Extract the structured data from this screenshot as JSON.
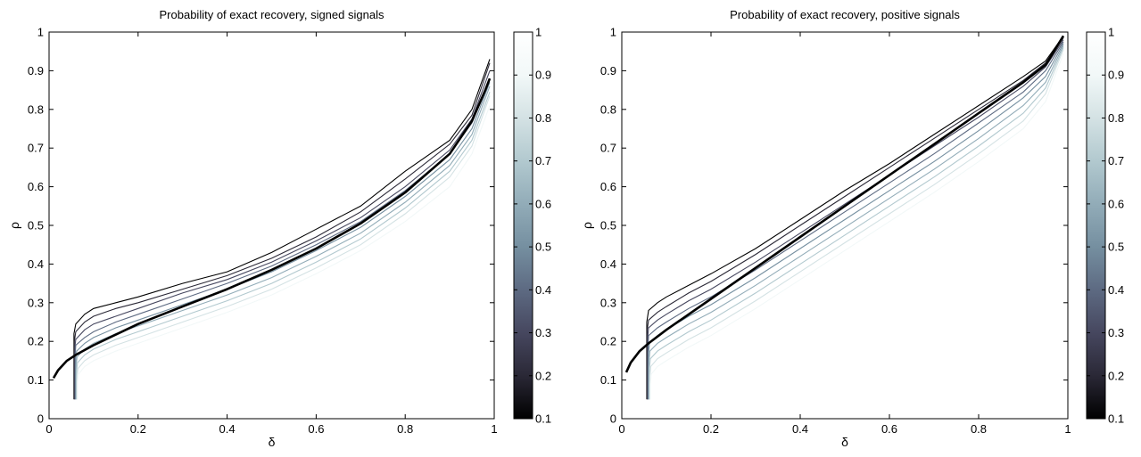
{
  "chart_data": [
    {
      "type": "contour",
      "title": "Probability of exact recovery, signed signals",
      "xlabel": "δ",
      "ylabel": "ρ",
      "xlim": [
        0,
        1
      ],
      "ylim": [
        0,
        1
      ],
      "x_ticks": [
        "0",
        "0.2",
        "0.4",
        "0.6",
        "0.8",
        "1"
      ],
      "y_ticks": [
        "0",
        "0.1",
        "0.2",
        "0.3",
        "0.4",
        "0.5",
        "0.6",
        "0.7",
        "0.8",
        "0.9",
        "1"
      ],
      "grid": false,
      "colorbar": {
        "ticks": [
          "0.1",
          "0.2",
          "0.3",
          "0.4",
          "0.5",
          "0.6",
          "0.7",
          "0.8",
          "0.9",
          "1"
        ],
        "colors": [
          "#000000",
          "#2a2836",
          "#46475f",
          "#5d6a82",
          "#758fa0",
          "#92acb8",
          "#b2c9cf",
          "#d4e2e4",
          "#f2f8f8",
          "#ffffff"
        ]
      },
      "threshold_curve": {
        "x": [
          0.01,
          0.02,
          0.04,
          0.06,
          0.1,
          0.2,
          0.3,
          0.4,
          0.5,
          0.6,
          0.7,
          0.8,
          0.9,
          0.95,
          0.98,
          0.99
        ],
        "y": [
          0.105,
          0.125,
          0.15,
          0.165,
          0.19,
          0.245,
          0.29,
          0.335,
          0.385,
          0.44,
          0.505,
          0.585,
          0.685,
          0.77,
          0.85,
          0.88
        ]
      },
      "contour_levels": [
        {
          "level": 0.1,
          "x": [
            0.056,
            0.06,
            0.08,
            0.1,
            0.15,
            0.2,
            0.3,
            0.4,
            0.5,
            0.6,
            0.7,
            0.8,
            0.9,
            0.95,
            0.99
          ],
          "y": [
            0.22,
            0.245,
            0.27,
            0.285,
            0.3,
            0.315,
            0.35,
            0.38,
            0.43,
            0.49,
            0.55,
            0.64,
            0.72,
            0.8,
            0.93
          ]
        },
        {
          "level": 0.2,
          "x": [
            0.057,
            0.06,
            0.08,
            0.1,
            0.15,
            0.2,
            0.3,
            0.4,
            0.5,
            0.6,
            0.7,
            0.8,
            0.9,
            0.95,
            0.99
          ],
          "y": [
            0.2,
            0.225,
            0.25,
            0.265,
            0.285,
            0.3,
            0.335,
            0.37,
            0.415,
            0.47,
            0.535,
            0.62,
            0.71,
            0.785,
            0.92
          ]
        },
        {
          "level": 0.3,
          "x": [
            0.058,
            0.06,
            0.08,
            0.1,
            0.15,
            0.2,
            0.3,
            0.4,
            0.5,
            0.6,
            0.7,
            0.8,
            0.9,
            0.95,
            0.99
          ],
          "y": [
            0.185,
            0.205,
            0.23,
            0.245,
            0.265,
            0.285,
            0.325,
            0.36,
            0.405,
            0.46,
            0.52,
            0.6,
            0.695,
            0.775,
            0.9
          ]
        },
        {
          "level": 0.4,
          "x": [
            0.059,
            0.06,
            0.08,
            0.1,
            0.15,
            0.2,
            0.3,
            0.4,
            0.5,
            0.6,
            0.7,
            0.8,
            0.9,
            0.95,
            0.99
          ],
          "y": [
            0.17,
            0.19,
            0.21,
            0.225,
            0.25,
            0.27,
            0.31,
            0.35,
            0.395,
            0.45,
            0.51,
            0.59,
            0.685,
            0.765,
            0.88
          ]
        },
        {
          "level": 0.5,
          "x": [
            0.06,
            0.062,
            0.08,
            0.1,
            0.15,
            0.2,
            0.3,
            0.4,
            0.5,
            0.6,
            0.7,
            0.8,
            0.9,
            0.95,
            0.99
          ],
          "y": [
            0.155,
            0.175,
            0.195,
            0.21,
            0.235,
            0.255,
            0.295,
            0.335,
            0.38,
            0.435,
            0.495,
            0.575,
            0.67,
            0.75,
            0.87
          ]
        },
        {
          "level": 0.6,
          "x": [
            0.061,
            0.063,
            0.08,
            0.1,
            0.15,
            0.2,
            0.3,
            0.4,
            0.5,
            0.6,
            0.7,
            0.8,
            0.9,
            0.95,
            0.99
          ],
          "y": [
            0.14,
            0.16,
            0.18,
            0.195,
            0.22,
            0.24,
            0.28,
            0.32,
            0.365,
            0.42,
            0.48,
            0.56,
            0.655,
            0.735,
            0.86
          ]
        },
        {
          "level": 0.7,
          "x": [
            0.062,
            0.064,
            0.08,
            0.1,
            0.15,
            0.2,
            0.3,
            0.4,
            0.5,
            0.6,
            0.7,
            0.8,
            0.9,
            0.95,
            0.99
          ],
          "y": [
            0.125,
            0.145,
            0.165,
            0.18,
            0.205,
            0.225,
            0.265,
            0.305,
            0.35,
            0.405,
            0.465,
            0.545,
            0.64,
            0.72,
            0.845
          ]
        },
        {
          "level": 0.8,
          "x": [
            0.063,
            0.065,
            0.08,
            0.1,
            0.15,
            0.2,
            0.3,
            0.4,
            0.5,
            0.6,
            0.7,
            0.8,
            0.9,
            0.95,
            0.99
          ],
          "y": [
            0.11,
            0.13,
            0.15,
            0.165,
            0.19,
            0.21,
            0.25,
            0.29,
            0.335,
            0.39,
            0.45,
            0.53,
            0.625,
            0.705,
            0.835
          ]
        },
        {
          "level": 0.9,
          "x": [
            0.064,
            0.066,
            0.08,
            0.1,
            0.15,
            0.2,
            0.3,
            0.4,
            0.5,
            0.6,
            0.7,
            0.8,
            0.9,
            0.95,
            0.99
          ],
          "y": [
            0.095,
            0.115,
            0.135,
            0.15,
            0.175,
            0.195,
            0.235,
            0.275,
            0.32,
            0.375,
            0.435,
            0.51,
            0.6,
            0.685,
            0.81
          ]
        }
      ]
    },
    {
      "type": "contour",
      "title": "Probability of exact recovery, positive signals",
      "xlabel": "δ",
      "ylabel": "ρ",
      "xlim": [
        0,
        1
      ],
      "ylim": [
        0,
        1
      ],
      "x_ticks": [
        "0",
        "0.2",
        "0.4",
        "0.6",
        "0.8",
        "1"
      ],
      "y_ticks": [
        "0",
        "0.1",
        "0.2",
        "0.3",
        "0.4",
        "0.5",
        "0.6",
        "0.7",
        "0.8",
        "0.9",
        "1"
      ],
      "grid": false,
      "colorbar": {
        "ticks": [
          "0.1",
          "0.2",
          "0.3",
          "0.4",
          "0.5",
          "0.6",
          "0.7",
          "0.8",
          "0.9",
          "1"
        ],
        "colors": [
          "#000000",
          "#2a2836",
          "#46475f",
          "#5d6a82",
          "#758fa0",
          "#92acb8",
          "#b2c9cf",
          "#d4e2e4",
          "#f2f8f8",
          "#ffffff"
        ]
      },
      "threshold_curve": {
        "x": [
          0.01,
          0.02,
          0.04,
          0.06,
          0.1,
          0.2,
          0.3,
          0.4,
          0.5,
          0.6,
          0.7,
          0.8,
          0.9,
          0.95,
          0.99
        ],
        "y": [
          0.12,
          0.145,
          0.175,
          0.195,
          0.23,
          0.31,
          0.39,
          0.47,
          0.55,
          0.63,
          0.71,
          0.79,
          0.87,
          0.915,
          0.99
        ]
      },
      "contour_levels": [
        {
          "level": 0.1,
          "x": [
            0.056,
            0.06,
            0.08,
            0.1,
            0.15,
            0.2,
            0.3,
            0.4,
            0.5,
            0.6,
            0.7,
            0.8,
            0.9,
            0.95,
            0.99
          ],
          "y": [
            0.25,
            0.28,
            0.3,
            0.315,
            0.345,
            0.375,
            0.44,
            0.515,
            0.59,
            0.66,
            0.735,
            0.81,
            0.885,
            0.925,
            0.99
          ]
        },
        {
          "level": 0.2,
          "x": [
            0.057,
            0.06,
            0.08,
            0.1,
            0.15,
            0.2,
            0.3,
            0.4,
            0.5,
            0.6,
            0.7,
            0.8,
            0.9,
            0.95,
            0.99
          ],
          "y": [
            0.23,
            0.255,
            0.275,
            0.29,
            0.325,
            0.355,
            0.425,
            0.5,
            0.575,
            0.65,
            0.725,
            0.8,
            0.875,
            0.92,
            0.985
          ]
        },
        {
          "level": 0.3,
          "x": [
            0.058,
            0.06,
            0.08,
            0.1,
            0.15,
            0.2,
            0.3,
            0.4,
            0.5,
            0.6,
            0.7,
            0.8,
            0.9,
            0.95,
            0.99
          ],
          "y": [
            0.21,
            0.235,
            0.255,
            0.27,
            0.305,
            0.335,
            0.405,
            0.48,
            0.555,
            0.63,
            0.705,
            0.78,
            0.86,
            0.91,
            0.98
          ]
        },
        {
          "level": 0.4,
          "x": [
            0.059,
            0.06,
            0.08,
            0.1,
            0.15,
            0.2,
            0.3,
            0.4,
            0.5,
            0.6,
            0.7,
            0.8,
            0.9,
            0.95,
            0.99
          ],
          "y": [
            0.19,
            0.215,
            0.235,
            0.25,
            0.285,
            0.315,
            0.385,
            0.46,
            0.535,
            0.61,
            0.685,
            0.765,
            0.845,
            0.9,
            0.975
          ]
        },
        {
          "level": 0.5,
          "x": [
            0.06,
            0.062,
            0.08,
            0.1,
            0.15,
            0.2,
            0.3,
            0.4,
            0.5,
            0.6,
            0.7,
            0.8,
            0.9,
            0.95,
            0.99
          ],
          "y": [
            0.17,
            0.195,
            0.215,
            0.23,
            0.265,
            0.295,
            0.365,
            0.44,
            0.515,
            0.59,
            0.665,
            0.745,
            0.83,
            0.885,
            0.97
          ]
        },
        {
          "level": 0.6,
          "x": [
            0.061,
            0.063,
            0.08,
            0.1,
            0.15,
            0.2,
            0.3,
            0.4,
            0.5,
            0.6,
            0.7,
            0.8,
            0.9,
            0.95,
            0.99
          ],
          "y": [
            0.15,
            0.175,
            0.195,
            0.21,
            0.245,
            0.275,
            0.345,
            0.42,
            0.495,
            0.57,
            0.645,
            0.725,
            0.81,
            0.87,
            0.965
          ]
        },
        {
          "level": 0.7,
          "x": [
            0.062,
            0.064,
            0.08,
            0.1,
            0.15,
            0.2,
            0.3,
            0.4,
            0.5,
            0.6,
            0.7,
            0.8,
            0.9,
            0.95,
            0.99
          ],
          "y": [
            0.13,
            0.155,
            0.175,
            0.19,
            0.225,
            0.255,
            0.325,
            0.4,
            0.475,
            0.55,
            0.625,
            0.705,
            0.79,
            0.855,
            0.96
          ]
        },
        {
          "level": 0.8,
          "x": [
            0.063,
            0.065,
            0.08,
            0.1,
            0.15,
            0.2,
            0.3,
            0.4,
            0.5,
            0.6,
            0.7,
            0.8,
            0.9,
            0.95,
            0.99
          ],
          "y": [
            0.11,
            0.135,
            0.155,
            0.17,
            0.205,
            0.235,
            0.305,
            0.38,
            0.455,
            0.53,
            0.605,
            0.685,
            0.77,
            0.84,
            0.955
          ]
        },
        {
          "level": 0.9,
          "x": [
            0.064,
            0.066,
            0.08,
            0.1,
            0.15,
            0.2,
            0.3,
            0.4,
            0.5,
            0.6,
            0.7,
            0.8,
            0.9,
            0.95,
            0.99
          ],
          "y": [
            0.09,
            0.115,
            0.135,
            0.15,
            0.185,
            0.215,
            0.285,
            0.36,
            0.435,
            0.51,
            0.585,
            0.665,
            0.75,
            0.82,
            0.945
          ]
        }
      ]
    }
  ]
}
